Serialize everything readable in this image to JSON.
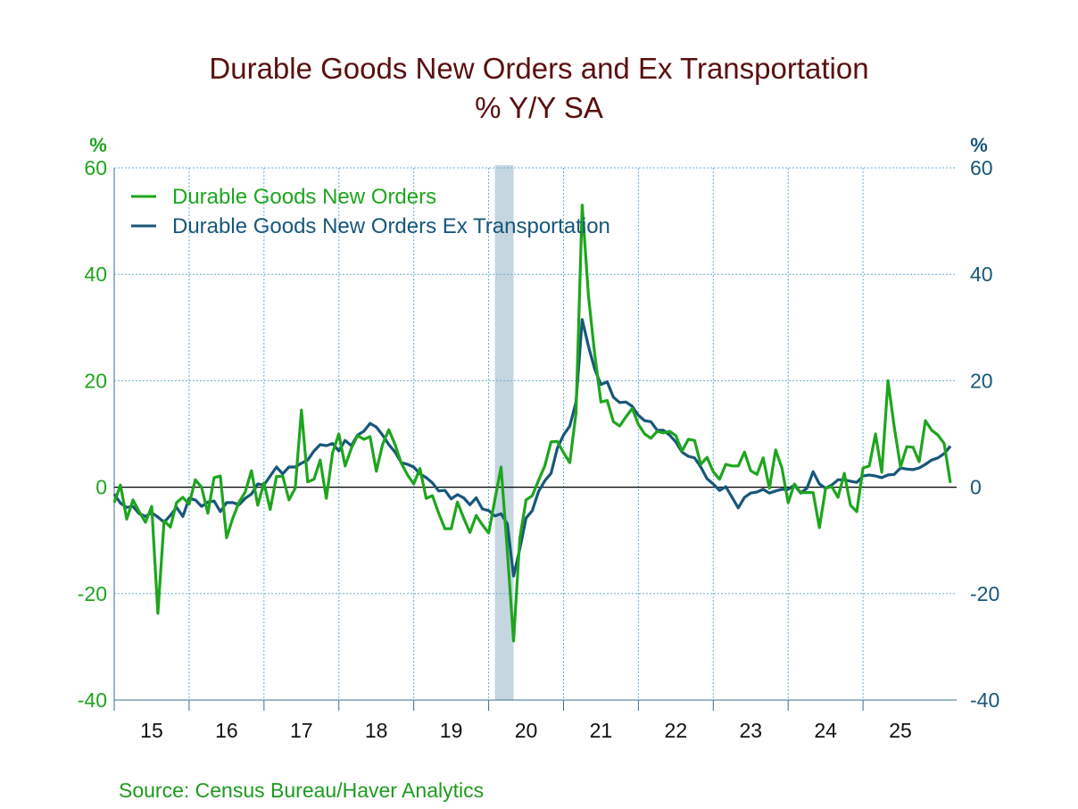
{
  "chart_data": {
    "type": "line",
    "title": "Durable Goods New Orders and Ex Transportation",
    "subtitle": "% Y/Y   SA",
    "ylabel_left": "%",
    "ylabel_right": "%",
    "ylim": [
      -40,
      60
    ],
    "yticks": [
      -40,
      -20,
      0,
      20,
      40,
      60
    ],
    "xlim": [
      "2015-01",
      "2026-04"
    ],
    "xtick_labels": [
      "15",
      "16",
      "17",
      "18",
      "19",
      "20",
      "21",
      "22",
      "23",
      "24",
      "25"
    ],
    "grid": true,
    "legend_placement": "top-left",
    "recession_shading": {
      "start": "2020-02",
      "end": "2020-04",
      "color": "#c5d6e0"
    },
    "start": "2015-01",
    "frequency": "monthly",
    "series": [
      {
        "name": "Durable Goods New Orders",
        "color": "#1ea51e",
        "axis": "left",
        "values": [
          -2.9,
          0.4,
          -6,
          -2.4,
          -4.6,
          -6.6,
          -3.6,
          -23.7,
          -6.3,
          -7.5,
          -2.9,
          -1.9,
          -3.2,
          1.4,
          0,
          -4.9,
          1.8,
          2.1,
          -9.5,
          -5.8,
          -2.8,
          -0.9,
          3.1,
          -3.4,
          0.8,
          -4.2,
          2,
          2.1,
          -2.4,
          -0.2,
          14.5,
          1,
          1.5,
          5.1,
          -2.1,
          6.5,
          10,
          4,
          7.3,
          9.7,
          9,
          9.5,
          3,
          8,
          10.8,
          8,
          4.5,
          2.3,
          0.6,
          3.5,
          -2.1,
          -1.6,
          -4.9,
          -7.8,
          -7.8,
          -2.8,
          -5.8,
          -8.5,
          -5.3,
          -7.1,
          -8.6,
          -2.4,
          3.8,
          -12,
          -28.9,
          -9.6,
          -2.4,
          -1.6,
          1.3,
          4,
          8.5,
          8.6,
          6.5,
          4.6,
          14,
          53,
          36,
          25,
          16,
          16.3,
          12.3,
          11.5,
          13.2,
          14.8,
          11.8,
          10,
          9.2,
          10.5,
          10.2,
          10.5,
          9.7,
          6.8,
          9,
          8.8,
          4.3,
          5.6,
          2.9,
          1.5,
          4.3,
          4,
          4,
          6.6,
          3.1,
          2.4,
          5.5,
          -0.2,
          7,
          3.6,
          -2.9,
          0.6,
          -1,
          -1,
          -1,
          -7.6,
          -0.2,
          0.1,
          -1.9,
          2.6,
          -3.4,
          -4.6,
          3.6,
          4,
          10,
          2.8,
          20,
          11.3,
          3.8,
          7.6,
          7.5,
          4.8,
          12.5,
          10.7,
          9.8,
          8.2,
          0.8
        ]
      },
      {
        "name": "Durable Goods New Orders Ex Transportation",
        "color": "#17577a",
        "axis": "right",
        "values": [
          -1.3,
          -3,
          -3.8,
          -3.6,
          -5,
          -5.5,
          -4.8,
          -5.6,
          -6.6,
          -5.3,
          -3.8,
          -5.5,
          -2.1,
          -2.4,
          -3.6,
          -2.8,
          -2.6,
          -4.6,
          -2.9,
          -2.9,
          -3.3,
          -2.1,
          -1.3,
          0.6,
          0.4,
          2.1,
          3.8,
          2.5,
          3.8,
          3.8,
          4.5,
          5.1,
          6.8,
          8,
          7.8,
          8.2,
          6.8,
          8.8,
          7.8,
          9.8,
          10.5,
          12,
          11.3,
          9.8,
          8,
          6.6,
          4.6,
          4.3,
          3.8,
          2.5,
          1.8,
          0.8,
          -0.7,
          -0.6,
          -2.2,
          -1.4,
          -2,
          -3.3,
          -2,
          -4.1,
          -4.4,
          -5.4,
          -5,
          -6.9,
          -16.7,
          -11.6,
          -5.8,
          -4.4,
          -0.8,
          1.2,
          2.6,
          7.3,
          9.8,
          11.5,
          16,
          31.5,
          26.5,
          22.2,
          19.3,
          19.8,
          16.9,
          15.9,
          16,
          15.2,
          13.5,
          12.5,
          12.3,
          10.7,
          10.7,
          9.8,
          8.5,
          6.6,
          5.8,
          5.5,
          3.8,
          1.6,
          0.6,
          -0.6,
          0.1,
          -1.9,
          -3.9,
          -1.9,
          -1.1,
          -0.9,
          -0.4,
          -1.1,
          -0.7,
          -0.4,
          -0.4,
          0.4,
          -1.1,
          -0.2,
          2.9,
          0.6,
          -0.2,
          0.4,
          1.4,
          1.4,
          1.1,
          0.9,
          2.1,
          2.3,
          2.1,
          1.8,
          2.3,
          2.4,
          3.6,
          3.4,
          3.3,
          3.6,
          4.3,
          5.1,
          5.5,
          6.3,
          7.7
        ]
      }
    ],
    "axis_colors": {
      "left": "#1ea51e",
      "right": "#17577a"
    }
  },
  "source": "Source:  Census Bureau/Haver Analytics"
}
